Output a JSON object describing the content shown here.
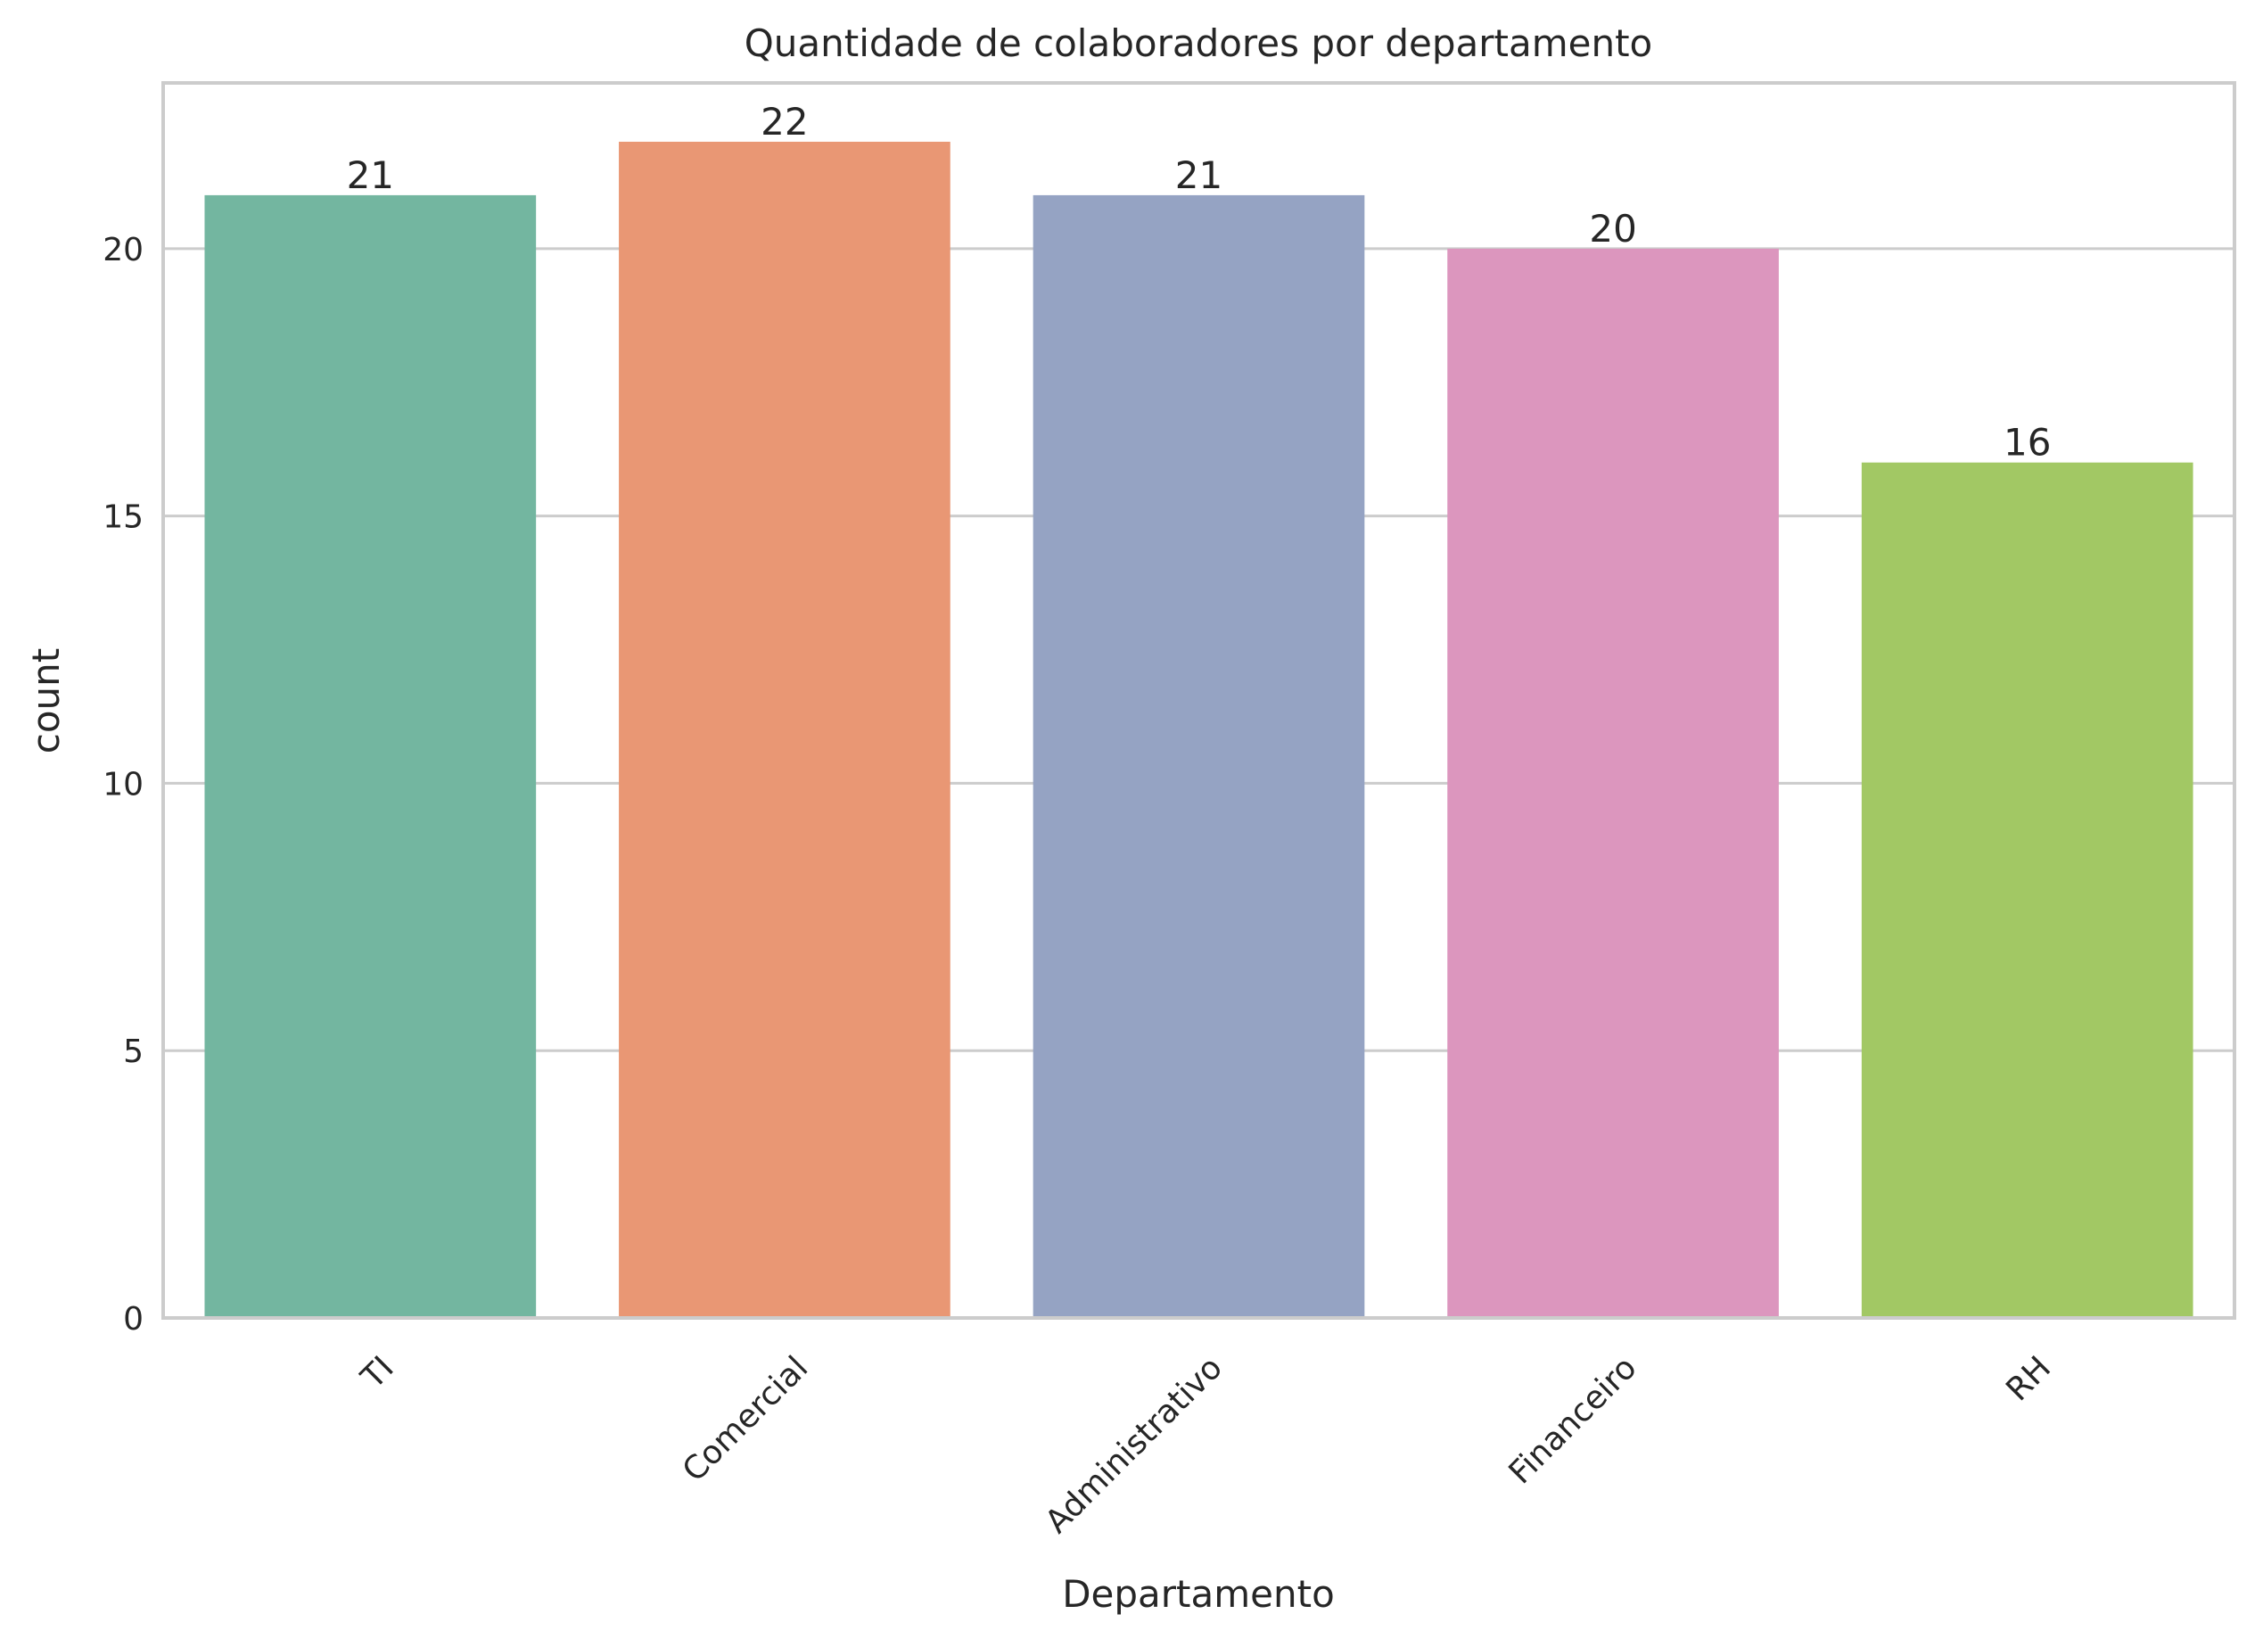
{
  "chart_data": {
    "type": "bar",
    "title": "Quantidade de colaboradores por departamento",
    "xlabel": "Departamento",
    "ylabel": "count",
    "categories": [
      "TI",
      "Comercial",
      "Administrativo",
      "Financeiro",
      "RH"
    ],
    "values": [
      21,
      22,
      21,
      20,
      16
    ],
    "data_labels": [
      "21",
      "22",
      "21",
      "20",
      "16"
    ],
    "colors": [
      "#73b6a0",
      "#e99774",
      "#95a3c3",
      "#dc96be",
      "#a2c864"
    ],
    "ylim": [
      0,
      23.1
    ],
    "yticks": [
      0,
      5,
      10,
      15,
      20
    ],
    "ytick_labels": [
      "0",
      "5",
      "10",
      "15",
      "20"
    ],
    "grid": "horizontal",
    "legend": "none"
  }
}
